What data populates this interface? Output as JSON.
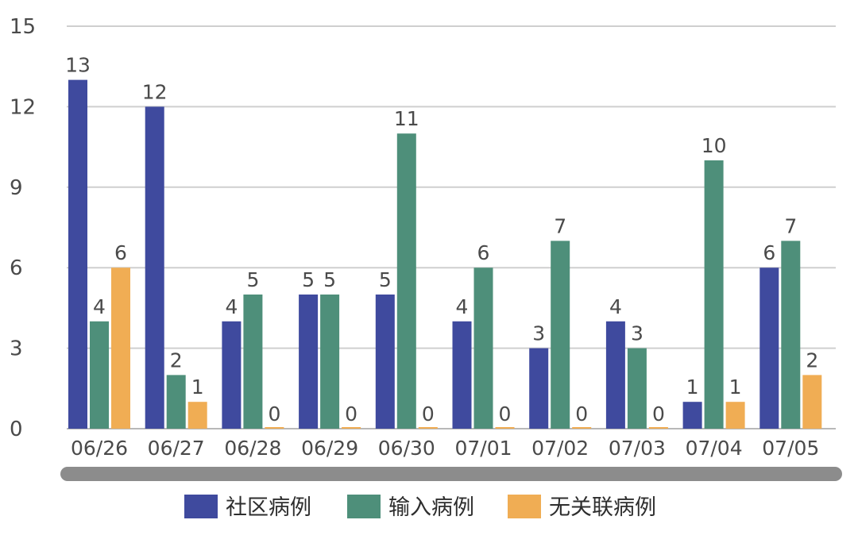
{
  "chart_data": {
    "type": "bar",
    "categories": [
      "06/26",
      "06/27",
      "06/28",
      "06/29",
      "06/30",
      "07/01",
      "07/02",
      "07/03",
      "07/04",
      "07/05"
    ],
    "series": [
      {
        "name": "社区病例",
        "color": "#3f4a9e",
        "values": [
          13,
          12,
          4,
          5,
          5,
          4,
          3,
          4,
          1,
          6
        ]
      },
      {
        "name": "输入病例",
        "color": "#4e8f7a",
        "values": [
          4,
          2,
          5,
          5,
          11,
          6,
          7,
          3,
          10,
          7
        ]
      },
      {
        "name": "无关联病例",
        "color": "#f0ad54",
        "values": [
          6,
          1,
          0,
          0,
          0,
          0,
          0,
          0,
          1,
          2
        ]
      }
    ],
    "yticks": [
      "0",
      "3",
      "6",
      "9",
      "12",
      "15"
    ],
    "ylim": [
      0,
      15
    ],
    "grid": true,
    "legend": "bottom",
    "data_labels": true,
    "scrollbar": true
  }
}
